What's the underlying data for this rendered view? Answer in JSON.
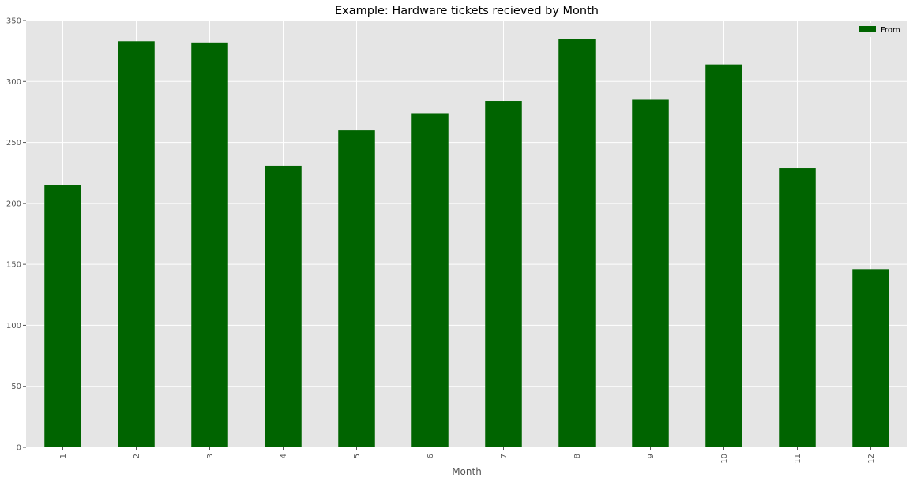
{
  "chart_data": {
    "type": "bar",
    "title": "Example: Hardware tickets recieved by Month",
    "xlabel": "Month",
    "ylabel": "",
    "categories": [
      "1",
      "2",
      "3",
      "4",
      "5",
      "6",
      "7",
      "8",
      "9",
      "10",
      "11",
      "12"
    ],
    "series": [
      {
        "name": "From",
        "values": [
          215,
          333,
          332,
          231,
          260,
          274,
          284,
          335,
          285,
          314,
          229,
          146
        ]
      }
    ],
    "ylim": [
      0,
      350
    ],
    "yticks": [
      0,
      50,
      100,
      150,
      200,
      250,
      300,
      350
    ],
    "grid": true,
    "legend_position": "top-right"
  },
  "colors": {
    "bar": "#006400",
    "plot_background": "#e5e5e5",
    "grid": "#ffffff",
    "text": "#555555"
  }
}
